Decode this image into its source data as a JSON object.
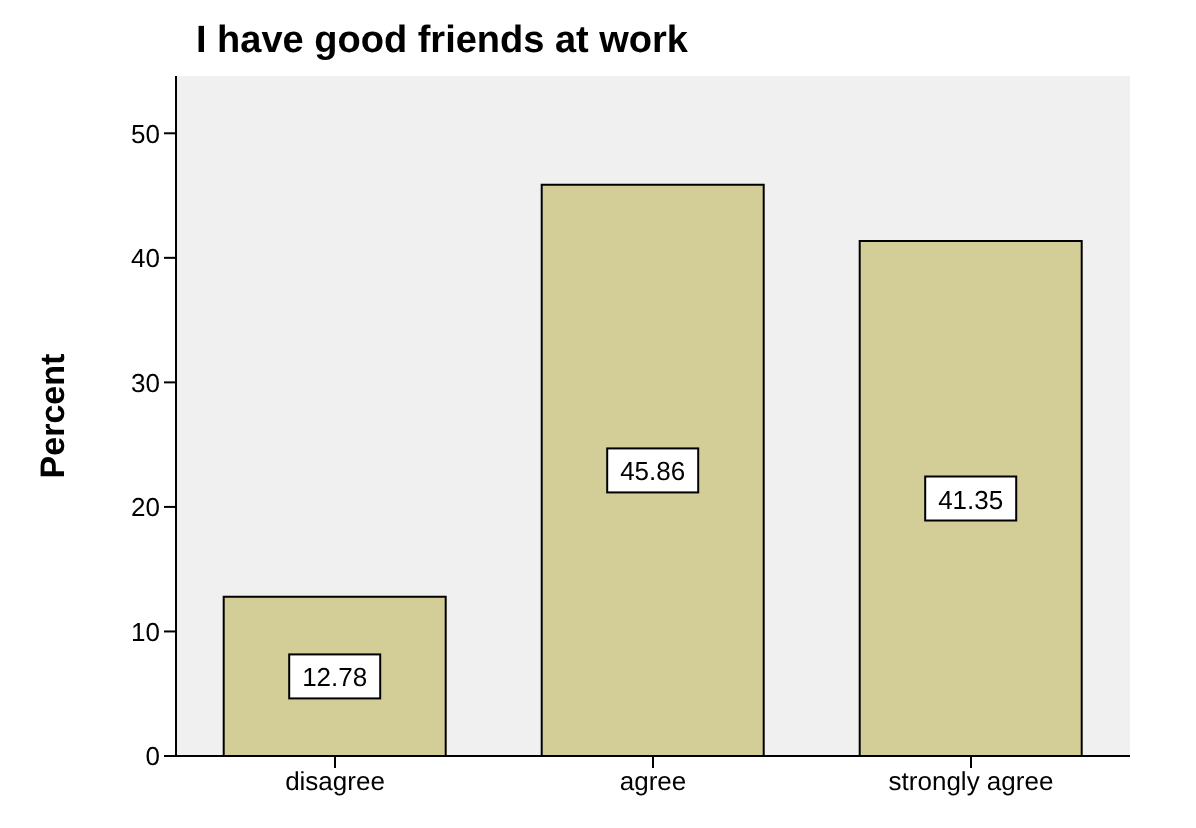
{
  "chart_data": {
    "type": "bar",
    "title": "I have good friends at work",
    "ylabel": "Percent",
    "categories": [
      "disagree",
      "agree",
      "strongly agree"
    ],
    "values": [
      12.78,
      45.86,
      41.35
    ],
    "color": "#d3ce97",
    "ylim": [
      0,
      54.6
    ],
    "yticks": [
      0,
      10,
      20,
      30,
      40,
      50
    ],
    "data_labels": true
  }
}
